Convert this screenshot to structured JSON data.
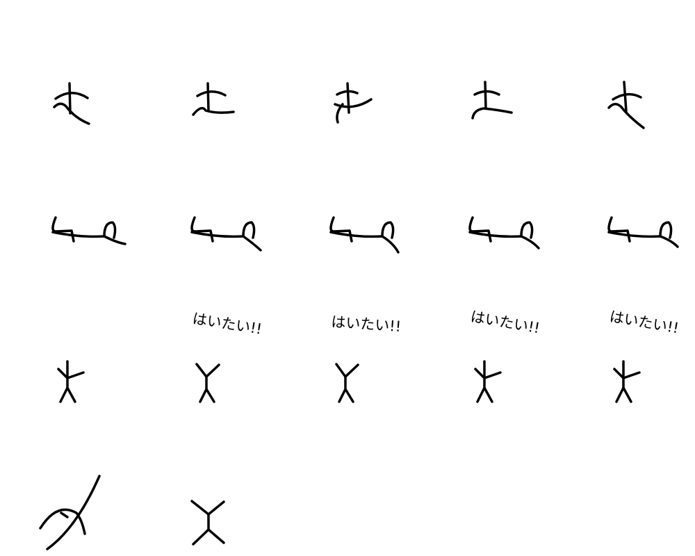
{
  "background": "#ffffff",
  "ink": "#000000",
  "captions": {
    "c1": "はいたい!!",
    "c2": "はいたい!!",
    "c3": "はいたい!!",
    "c4": "はいたい!!"
  },
  "sprites": {
    "row1": [
      "character-scribble-icon",
      "character-scribble-icon",
      "character-scribble-icon",
      "character-scribble-icon",
      "character-scribble-icon"
    ],
    "row2": [
      "wave-stroke-icon",
      "wave-stroke-icon",
      "wave-stroke-icon",
      "wave-stroke-icon",
      "wave-stroke-icon"
    ],
    "row3": [
      "stick-figure-icon",
      "stick-figure-icon",
      "stick-figure-icon",
      "stick-figure-icon",
      "stick-figure-icon"
    ],
    "row4": [
      "curve-figure-icon",
      "stick-figure-icon"
    ]
  }
}
